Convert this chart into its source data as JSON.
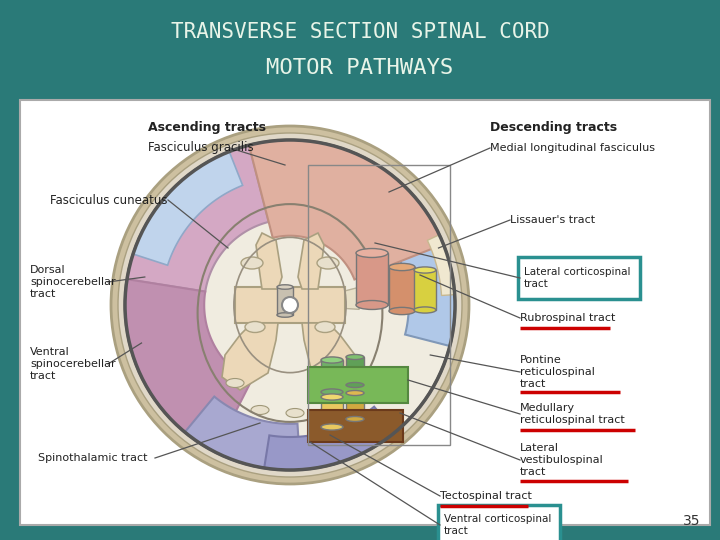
{
  "title1": "TRANSVERSE SECTION SPINAL CORD",
  "title2": "MOTOR PATHWAYS",
  "page_num": "35",
  "bg_color": "#2a7a78",
  "title_color": "#e8f4e8",
  "label_color": "#222222"
}
